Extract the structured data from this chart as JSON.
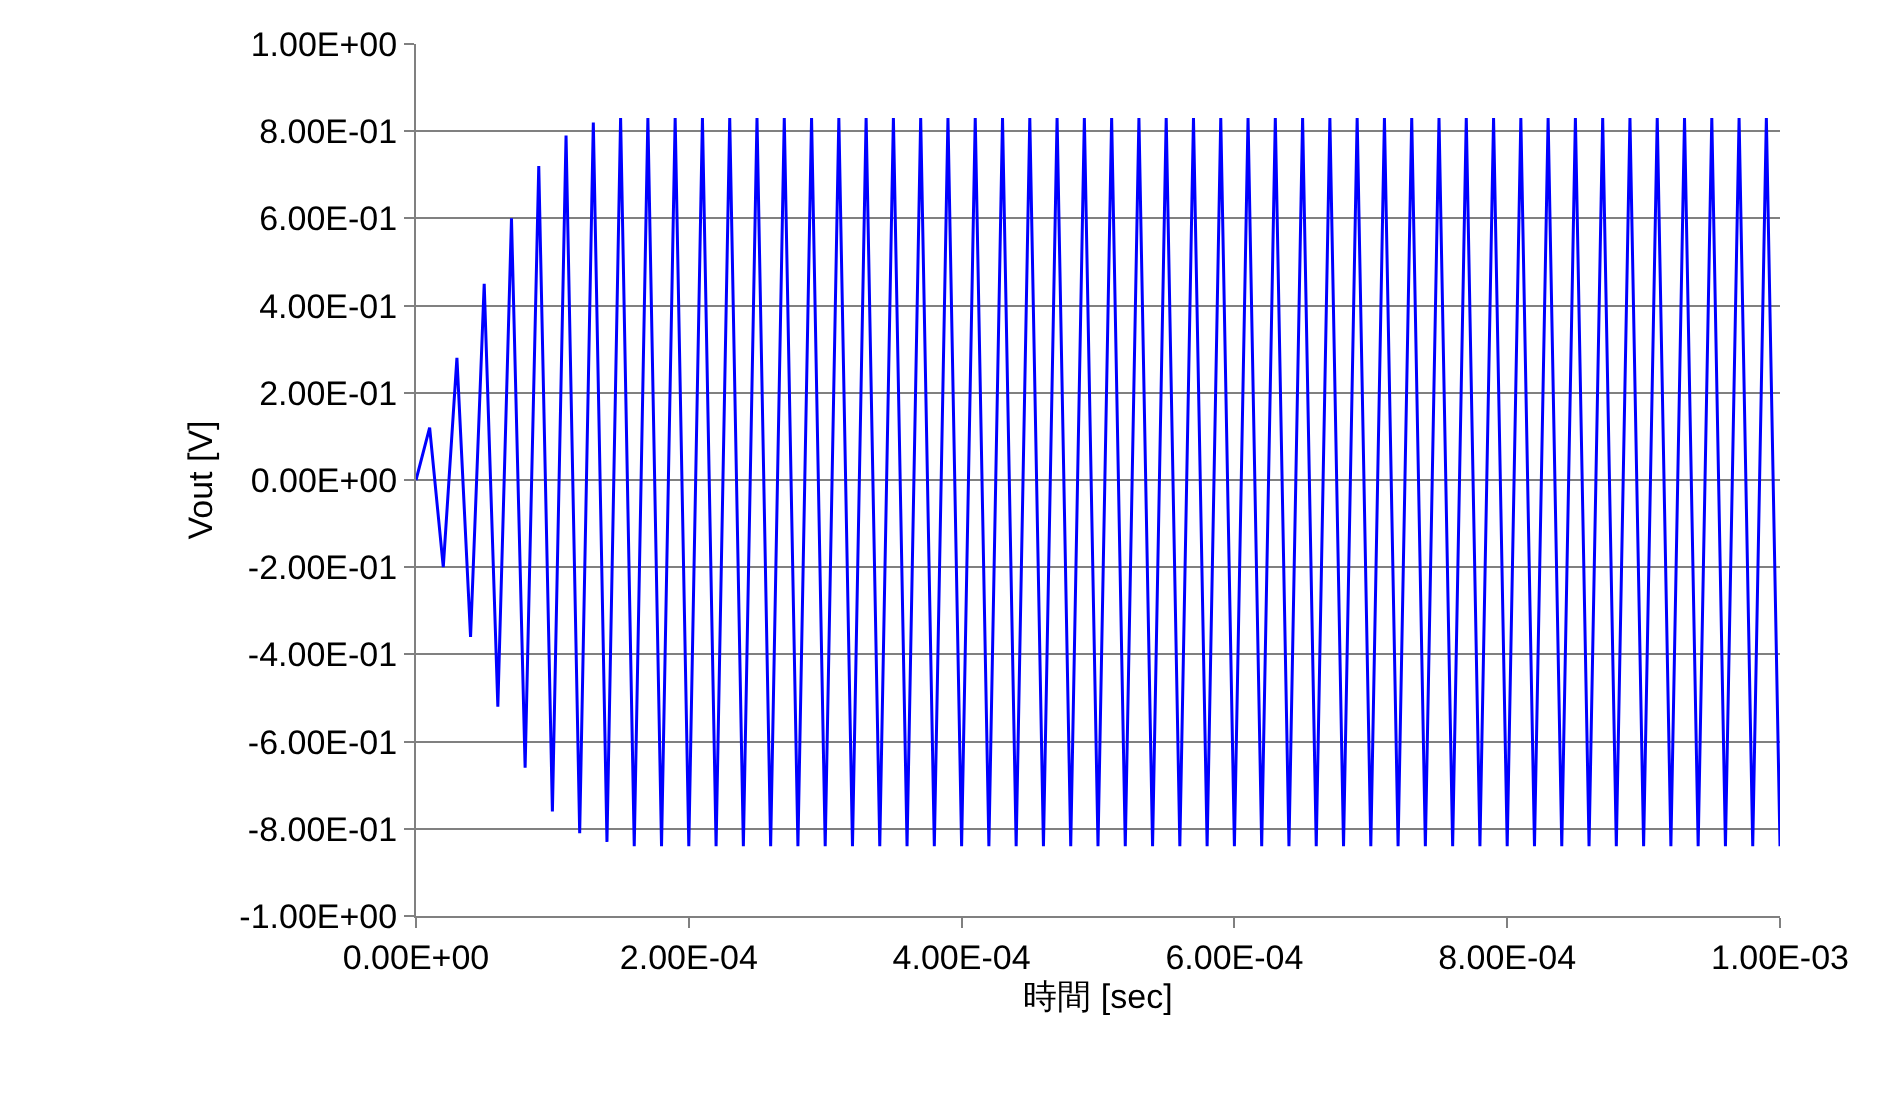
{
  "chart_data": {
    "type": "line",
    "xlabel": "時間 [sec]",
    "ylabel": "Vout [V]",
    "xlim": [
      0,
      0.001
    ],
    "ylim": [
      -1,
      1
    ],
    "xticks": [
      {
        "value": 0,
        "label": "0.00E+00"
      },
      {
        "value": 0.0002,
        "label": "2.00E-04"
      },
      {
        "value": 0.0004,
        "label": "4.00E-04"
      },
      {
        "value": 0.0006,
        "label": "6.00E-04"
      },
      {
        "value": 0.0008,
        "label": "8.00E-04"
      },
      {
        "value": 0.001,
        "label": "1.00E-03"
      }
    ],
    "yticks": [
      {
        "value": -1,
        "label": "-1.00E+00"
      },
      {
        "value": -0.8,
        "label": "-8.00E-01"
      },
      {
        "value": -0.6,
        "label": "-6.00E-01"
      },
      {
        "value": -0.4,
        "label": "-4.00E-01"
      },
      {
        "value": -0.2,
        "label": "-2.00E-01"
      },
      {
        "value": 0,
        "label": "0.00E+00"
      },
      {
        "value": 0.2,
        "label": "2.00E-01"
      },
      {
        "value": 0.4,
        "label": "4.00E-01"
      },
      {
        "value": 0.6,
        "label": "6.00E-01"
      },
      {
        "value": 0.8,
        "label": "8.00E-01"
      },
      {
        "value": 1,
        "label": "1.00E+00"
      }
    ],
    "grid": "y",
    "marker": "none",
    "line_style": "solid",
    "series": [
      {
        "color": "#0000ff",
        "x": [
          0,
          1e-05,
          2e-05,
          3e-05,
          4e-05,
          5e-05,
          6e-05,
          7e-05,
          8e-05,
          9e-05,
          0.0001,
          0.00011,
          0.00012,
          0.00013,
          0.00014,
          0.00015,
          0.00016,
          0.00017,
          0.00018,
          0.00019,
          0.0002,
          0.00021,
          0.00022,
          0.00023,
          0.00024,
          0.00025,
          0.00026,
          0.00027,
          0.00028,
          0.00029,
          0.0003,
          0.00031,
          0.00032,
          0.00033,
          0.00034,
          0.00035,
          0.00036,
          0.00037,
          0.00038,
          0.00039,
          0.0004,
          0.00041,
          0.00042,
          0.00043,
          0.00044,
          0.00045,
          0.00046,
          0.00047,
          0.00048,
          0.00049,
          0.0005,
          0.00051,
          0.00052,
          0.00053,
          0.00054,
          0.00055,
          0.00056,
          0.00057,
          0.00058,
          0.00059,
          0.0006,
          0.00061,
          0.00062,
          0.00063,
          0.00064,
          0.00065,
          0.00066,
          0.00067,
          0.00068,
          0.00069,
          0.0007,
          0.00071,
          0.00072,
          0.00073,
          0.00074,
          0.00075,
          0.00076,
          0.00077,
          0.00078,
          0.00079,
          0.0008,
          0.00081,
          0.00082,
          0.00083,
          0.00084,
          0.00085,
          0.00086,
          0.00087,
          0.00088,
          0.00089,
          0.0009,
          0.00091,
          0.00092,
          0.00093,
          0.00094,
          0.00095,
          0.00096,
          0.00097,
          0.00098,
          0.00099,
          0.001
        ],
        "values": [
          0,
          0.12,
          -0.2,
          0.28,
          -0.36,
          0.45,
          -0.52,
          0.6,
          -0.66,
          0.72,
          -0.76,
          0.79,
          -0.81,
          0.82,
          -0.83,
          0.83,
          -0.84,
          0.83,
          -0.84,
          0.83,
          -0.84,
          0.83,
          -0.84,
          0.83,
          -0.84,
          0.83,
          -0.84,
          0.83,
          -0.84,
          0.83,
          -0.84,
          0.83,
          -0.84,
          0.83,
          -0.84,
          0.83,
          -0.84,
          0.83,
          -0.84,
          0.83,
          -0.84,
          0.83,
          -0.84,
          0.83,
          -0.84,
          0.83,
          -0.84,
          0.83,
          -0.84,
          0.83,
          -0.84,
          0.83,
          -0.84,
          0.83,
          -0.84,
          0.83,
          -0.84,
          0.83,
          -0.84,
          0.83,
          -0.84,
          0.83,
          -0.84,
          0.83,
          -0.84,
          0.83,
          -0.84,
          0.83,
          -0.84,
          0.83,
          -0.84,
          0.83,
          -0.84,
          0.83,
          -0.84,
          0.83,
          -0.84,
          0.83,
          -0.84,
          0.83,
          -0.84,
          0.83,
          -0.84,
          0.83,
          -0.84,
          0.83,
          -0.84,
          0.83,
          -0.84,
          0.83,
          -0.84,
          0.83,
          -0.84,
          0.83,
          -0.84,
          0.83,
          -0.84,
          0.83,
          -0.84,
          0.83,
          -0.84
        ]
      }
    ]
  }
}
